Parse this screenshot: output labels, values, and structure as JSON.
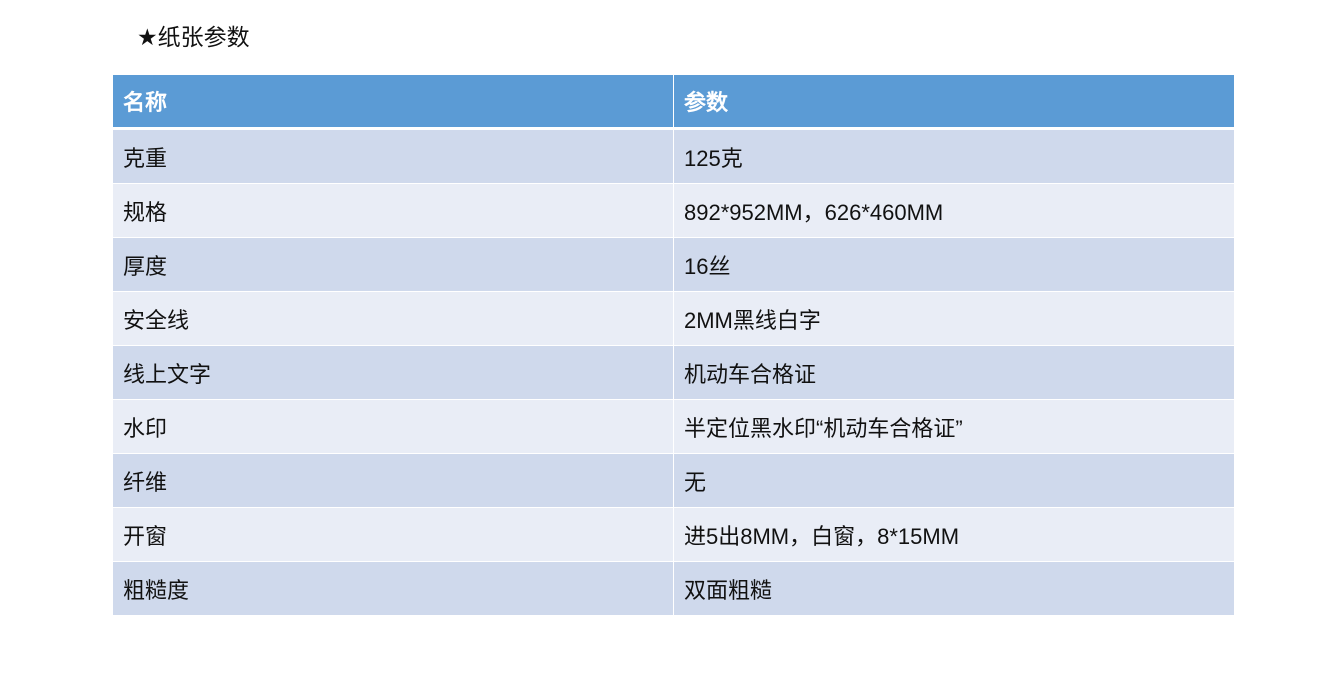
{
  "title": "★纸张参数",
  "table": {
    "headers": [
      "名称",
      "参数"
    ],
    "rows": [
      [
        "克重",
        "125克"
      ],
      [
        "规格",
        "892*952MM，626*460MM"
      ],
      [
        "厚度",
        "16丝"
      ],
      [
        "安全线",
        "2MM黑线白字"
      ],
      [
        "线上文字",
        "机动车合格证"
      ],
      [
        "水印",
        "半定位黑水印“机动车合格证”"
      ],
      [
        "纤维",
        "无"
      ],
      [
        "开窗",
        "进5出8MM，白窗，8*15MM"
      ],
      [
        "粗糙度",
        "双面粗糙"
      ]
    ]
  },
  "colors": {
    "header": "#5b9bd5",
    "row_odd": "#cfd9ec",
    "row_even": "#e9edf6"
  }
}
